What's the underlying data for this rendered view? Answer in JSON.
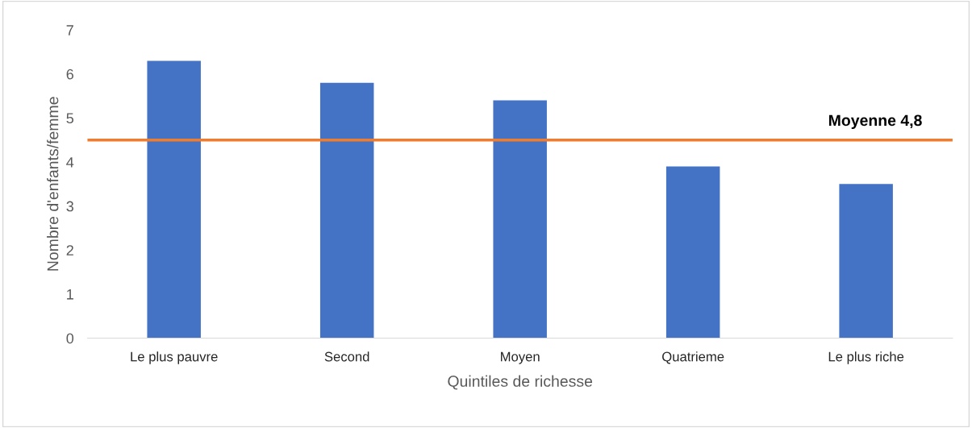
{
  "chart_data": {
    "type": "bar",
    "xlabel": "Quintiles de richesse",
    "ylabel": "Nombre d'enfants/femme",
    "categories": [
      "Le plus pauvre",
      "Second",
      "Moyen",
      "Quatrieme",
      "Le plus riche"
    ],
    "values": [
      6.3,
      5.8,
      5.4,
      3.9,
      3.5
    ],
    "color": "#4472c4",
    "ylim": [
      0,
      7
    ],
    "yticks": [
      0,
      1,
      2,
      3,
      4,
      5,
      6,
      7
    ],
    "grid": false,
    "ref_lines": [
      {
        "axis": "y",
        "value": 4.5,
        "label": "Moyenne 4,8",
        "color": "#ed7d31",
        "line_style": "solid"
      }
    ]
  }
}
